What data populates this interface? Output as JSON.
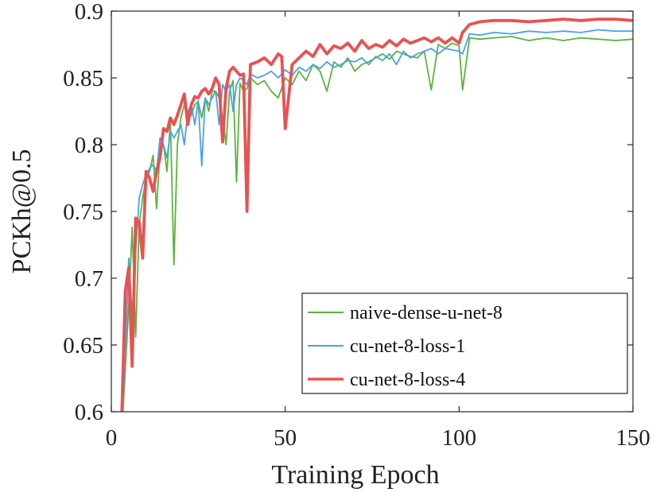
{
  "chart_data": {
    "type": "line",
    "title": "",
    "xlabel": "Training Epoch",
    "ylabel": "PCKh@0.5",
    "xlim": [
      0,
      150
    ],
    "ylim": [
      0.6,
      0.9
    ],
    "xticks": [
      0,
      50,
      100,
      150
    ],
    "xtick_labels": [
      "0",
      "50",
      "100",
      "150"
    ],
    "yticks": [
      0.6,
      0.65,
      0.7,
      0.75,
      0.8,
      0.85,
      0.9
    ],
    "ytick_labels": [
      "0.6",
      "0.65",
      "0.7",
      "0.75",
      "0.8",
      "0.85",
      "0.9"
    ],
    "grid": false,
    "legend": "bottom-right",
    "series": [
      {
        "name": "naive-dense-u-net-8",
        "color": "#5ab43c",
        "x": [
          3,
          4,
          5,
          6,
          7,
          8,
          9,
          10,
          11,
          12,
          13,
          14,
          15,
          16,
          17,
          18,
          19,
          20,
          21,
          22,
          23,
          24,
          25,
          26,
          27,
          28,
          29,
          30,
          31,
          32,
          33,
          34,
          35,
          36,
          37,
          38,
          39,
          40,
          42,
          44,
          46,
          48,
          50,
          52,
          54,
          56,
          58,
          60,
          62,
          64,
          66,
          68,
          70,
          72,
          74,
          76,
          78,
          80,
          82,
          84,
          86,
          88,
          90,
          92,
          94,
          96,
          98,
          100,
          101,
          103,
          106,
          110,
          115,
          120,
          125,
          130,
          135,
          140,
          145,
          150
        ],
        "y": [
          0.585,
          0.63,
          0.68,
          0.738,
          0.656,
          0.74,
          0.76,
          0.775,
          0.78,
          0.792,
          0.752,
          0.795,
          0.8,
          0.78,
          0.818,
          0.71,
          0.8,
          0.82,
          0.83,
          0.825,
          0.822,
          0.83,
          0.832,
          0.82,
          0.835,
          0.825,
          0.84,
          0.84,
          0.835,
          0.82,
          0.8,
          0.84,
          0.848,
          0.772,
          0.846,
          0.84,
          0.842,
          0.85,
          0.845,
          0.848,
          0.84,
          0.835,
          0.85,
          0.845,
          0.855,
          0.848,
          0.86,
          0.855,
          0.84,
          0.862,
          0.858,
          0.865,
          0.855,
          0.86,
          0.862,
          0.865,
          0.868,
          0.864,
          0.87,
          0.868,
          0.866,
          0.865,
          0.87,
          0.841,
          0.875,
          0.872,
          0.876,
          0.874,
          0.841,
          0.88,
          0.879,
          0.88,
          0.881,
          0.878,
          0.88,
          0.878,
          0.88,
          0.879,
          0.878,
          0.879
        ]
      },
      {
        "name": "cu-net-8-loss-1",
        "color": "#4aa2ea",
        "x": [
          3,
          4,
          5,
          6,
          7,
          8,
          9,
          10,
          11,
          12,
          13,
          14,
          15,
          16,
          17,
          18,
          19,
          20,
          21,
          22,
          23,
          24,
          25,
          26,
          27,
          28,
          29,
          30,
          31,
          32,
          33,
          34,
          35,
          36,
          37,
          38,
          39,
          40,
          42,
          44,
          46,
          48,
          50,
          52,
          54,
          56,
          58,
          60,
          62,
          64,
          66,
          68,
          70,
          72,
          74,
          76,
          78,
          80,
          82,
          84,
          86,
          88,
          90,
          92,
          94,
          96,
          98,
          100,
          101,
          103,
          106,
          110,
          115,
          120,
          125,
          130,
          135,
          140,
          145,
          150
        ],
        "y": [
          0.59,
          0.64,
          0.715,
          0.672,
          0.72,
          0.76,
          0.77,
          0.778,
          0.782,
          0.785,
          0.78,
          0.805,
          0.8,
          0.79,
          0.81,
          0.805,
          0.81,
          0.815,
          0.8,
          0.825,
          0.83,
          0.815,
          0.833,
          0.784,
          0.835,
          0.83,
          0.835,
          0.84,
          0.815,
          0.845,
          0.84,
          0.845,
          0.825,
          0.845,
          0.85,
          0.848,
          0.845,
          0.853,
          0.85,
          0.852,
          0.855,
          0.85,
          0.856,
          0.852,
          0.858,
          0.855,
          0.86,
          0.857,
          0.862,
          0.858,
          0.86,
          0.863,
          0.862,
          0.865,
          0.86,
          0.866,
          0.863,
          0.868,
          0.86,
          0.87,
          0.865,
          0.868,
          0.87,
          0.872,
          0.868,
          0.872,
          0.871,
          0.87,
          0.868,
          0.883,
          0.882,
          0.884,
          0.883,
          0.885,
          0.884,
          0.885,
          0.884,
          0.886,
          0.885,
          0.885
        ]
      },
      {
        "name": "cu-net-8-loss-4",
        "color": "#e85252",
        "x": [
          3,
          4,
          5,
          6,
          7,
          8,
          9,
          10,
          11,
          12,
          13,
          14,
          15,
          16,
          17,
          18,
          19,
          20,
          21,
          22,
          23,
          24,
          25,
          26,
          27,
          28,
          29,
          30,
          31,
          32,
          33,
          34,
          35,
          36,
          37,
          38,
          39,
          40,
          42,
          44,
          46,
          48,
          49,
          50,
          52,
          54,
          56,
          58,
          60,
          62,
          64,
          66,
          68,
          70,
          72,
          74,
          76,
          78,
          80,
          82,
          84,
          86,
          88,
          90,
          92,
          94,
          96,
          98,
          100,
          101,
          103,
          106,
          110,
          115,
          120,
          125,
          130,
          135,
          140,
          145,
          150
        ],
        "y": [
          0.595,
          0.69,
          0.708,
          0.634,
          0.745,
          0.742,
          0.715,
          0.78,
          0.775,
          0.765,
          0.78,
          0.79,
          0.812,
          0.81,
          0.82,
          0.815,
          0.822,
          0.83,
          0.838,
          0.815,
          0.83,
          0.836,
          0.835,
          0.84,
          0.842,
          0.838,
          0.842,
          0.85,
          0.845,
          0.802,
          0.842,
          0.855,
          0.858,
          0.855,
          0.852,
          0.853,
          0.75,
          0.86,
          0.862,
          0.865,
          0.86,
          0.868,
          0.866,
          0.812,
          0.86,
          0.865,
          0.87,
          0.866,
          0.875,
          0.868,
          0.874,
          0.872,
          0.876,
          0.87,
          0.878,
          0.872,
          0.875,
          0.873,
          0.878,
          0.874,
          0.879,
          0.876,
          0.878,
          0.88,
          0.877,
          0.88,
          0.876,
          0.88,
          0.876,
          0.884,
          0.89,
          0.892,
          0.893,
          0.893,
          0.892,
          0.893,
          0.894,
          0.893,
          0.894,
          0.894,
          0.893
        ]
      }
    ]
  }
}
